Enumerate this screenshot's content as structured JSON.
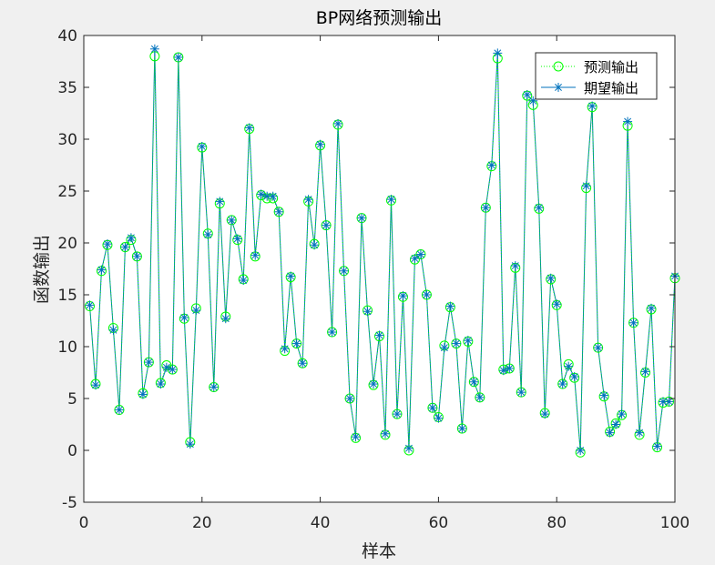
{
  "chart_data": {
    "type": "line",
    "title": "BP网络预测输出",
    "xlabel": "样本",
    "ylabel": "函数输出",
    "xlim": [
      0,
      100
    ],
    "ylim": [
      -5,
      40
    ],
    "xticks": [
      0,
      20,
      40,
      60,
      80,
      100
    ],
    "yticks": [
      -5,
      0,
      5,
      10,
      15,
      20,
      25,
      30,
      35,
      40
    ],
    "grid": false,
    "legend_position": "top-right",
    "series": [
      {
        "name": "预测输出",
        "style": "dotted-circle",
        "color": "#00ff00",
        "values": [
          13.9,
          6.4,
          17.3,
          19.8,
          11.8,
          3.9,
          19.6,
          20.3,
          18.7,
          5.5,
          8.5,
          38.0,
          6.5,
          8.2,
          7.8,
          37.9,
          12.7,
          0.8,
          13.7,
          29.2,
          20.9,
          6.1,
          23.8,
          12.9,
          22.2,
          20.3,
          16.5,
          31.0,
          18.7,
          24.6,
          24.3,
          24.3,
          23.0,
          9.6,
          16.7,
          10.3,
          8.4,
          24.0,
          19.9,
          29.4,
          21.7,
          11.4,
          31.4,
          17.3,
          5.0,
          1.2,
          22.4,
          13.5,
          6.3,
          11.0,
          1.5,
          24.1,
          3.5,
          14.8,
          0.0,
          18.4,
          18.9,
          15.0,
          4.1,
          3.2,
          10.1,
          13.8,
          10.3,
          2.1,
          10.5,
          6.6,
          5.1,
          23.4,
          27.4,
          37.8,
          7.8,
          7.9,
          17.6,
          5.6,
          34.2,
          33.3,
          23.3,
          3.6,
          16.5,
          14.0,
          6.4,
          8.3,
          7.0,
          -0.2,
          25.3,
          33.1,
          9.9,
          5.2,
          1.8,
          2.6,
          3.4,
          31.3,
          12.3,
          1.5,
          7.5,
          13.6,
          0.3,
          4.6,
          4.7,
          16.6
        ]
      },
      {
        "name": "期望输出",
        "style": "solid-asterisk",
        "color": "#0072bd",
        "values": [
          14.0,
          6.3,
          17.4,
          19.9,
          11.6,
          3.9,
          19.6,
          20.5,
          18.7,
          5.4,
          8.5,
          38.7,
          6.4,
          8.0,
          7.8,
          37.9,
          12.8,
          0.6,
          13.5,
          29.3,
          20.8,
          6.1,
          24.0,
          12.7,
          22.2,
          20.4,
          16.4,
          31.1,
          18.8,
          24.7,
          24.5,
          24.5,
          23.0,
          9.8,
          16.8,
          10.3,
          8.4,
          24.2,
          19.8,
          29.5,
          21.7,
          11.4,
          31.5,
          17.3,
          5.0,
          1.3,
          22.4,
          13.4,
          6.4,
          11.1,
          1.6,
          24.2,
          3.5,
          14.9,
          0.2,
          18.5,
          18.9,
          15.0,
          4.1,
          3.1,
          9.9,
          13.9,
          10.3,
          2.1,
          10.6,
          6.6,
          5.1,
          23.4,
          27.5,
          38.3,
          7.7,
          7.9,
          17.8,
          5.6,
          34.3,
          33.7,
          23.4,
          3.5,
          16.6,
          14.1,
          6.4,
          8.1,
          7.1,
          0.0,
          25.5,
          33.2,
          9.9,
          5.3,
          1.7,
          2.5,
          3.5,
          31.7,
          12.3,
          1.7,
          7.6,
          13.7,
          0.4,
          4.7,
          4.7,
          16.8
        ]
      }
    ]
  }
}
